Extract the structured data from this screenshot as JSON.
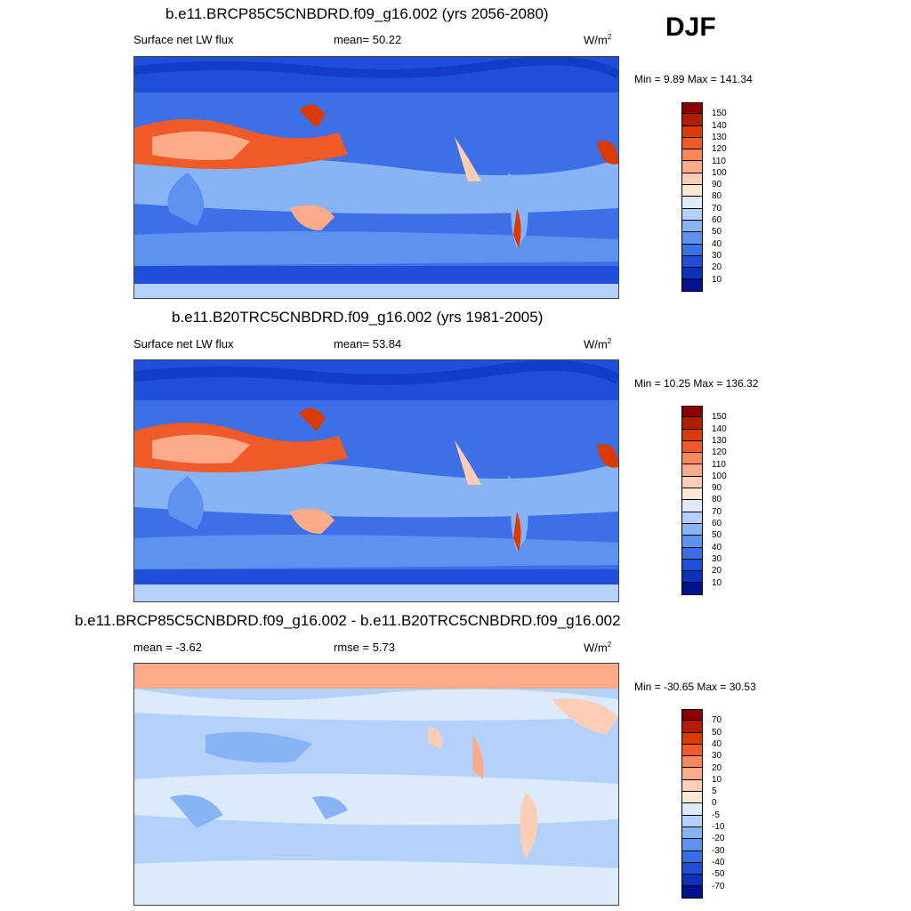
{
  "season": "DJF",
  "panels": [
    {
      "title": "b.e11.BRCP85C5CNBDRD.f09_g16.002 (yrs 2056-2080)",
      "left_label": "Surface net LW flux",
      "center_label": "mean=  50.22",
      "units": "W/m",
      "units_sup": "2",
      "minmax": "Min =   9.89 Max = 141.34",
      "colorbar": {
        "ticks": [
          "150",
          "140",
          "130",
          "120",
          "110",
          "100",
          "90",
          "80",
          "70",
          "60",
          "50",
          "40",
          "30",
          "20",
          "10"
        ],
        "colors": [
          "#8b0000",
          "#b01d00",
          "#d93b00",
          "#f05a28",
          "#f8875a",
          "#fbab8a",
          "#fdcdb6",
          "#fde8d7",
          "#dcebfb",
          "#b3d1fa",
          "#88b3f5",
          "#5e92ef",
          "#3a6fe6",
          "#1f4fd8",
          "#0a32bd",
          "#00128e"
        ]
      }
    },
    {
      "title": "b.e11.B20TRC5CNBDRD.f09_g16.002 (yrs 1981-2005)",
      "left_label": "Surface net LW flux",
      "center_label": "mean=  53.84",
      "units": "W/m",
      "units_sup": "2",
      "minmax": "Min =  10.25 Max = 136.32",
      "colorbar": {
        "ticks": [
          "150",
          "140",
          "130",
          "120",
          "110",
          "100",
          "90",
          "80",
          "70",
          "60",
          "50",
          "40",
          "30",
          "20",
          "10"
        ],
        "colors": [
          "#8b0000",
          "#b01d00",
          "#d93b00",
          "#f05a28",
          "#f8875a",
          "#fbab8a",
          "#fdcdb6",
          "#fde8d7",
          "#dcebfb",
          "#b3d1fa",
          "#88b3f5",
          "#5e92ef",
          "#3a6fe6",
          "#1f4fd8",
          "#0a32bd",
          "#00128e"
        ]
      }
    },
    {
      "title": "b.e11.BRCP85C5CNBDRD.f09_g16.002 - b.e11.B20TRC5CNBDRD.f09_g16.002",
      "left_label": "mean =  -3.62",
      "center_label": "rmse =   5.73",
      "units": "W/m",
      "units_sup": "2",
      "minmax": "Min = -30.65 Max =  30.53",
      "colorbar": {
        "ticks": [
          "70",
          "50",
          "40",
          "30",
          "20",
          "10",
          "5",
          "0",
          "-5",
          "-10",
          "-20",
          "-30",
          "-40",
          "-50",
          "-70"
        ],
        "colors": [
          "#8b0000",
          "#b01d00",
          "#d93b00",
          "#f05a28",
          "#f8875a",
          "#fbab8a",
          "#fdcdb6",
          "#fde8d7",
          "#dcebfb",
          "#b3d1fa",
          "#88b3f5",
          "#5e92ef",
          "#3a6fe6",
          "#1f4fd8",
          "#0a32bd",
          "#00128e"
        ]
      }
    }
  ]
}
